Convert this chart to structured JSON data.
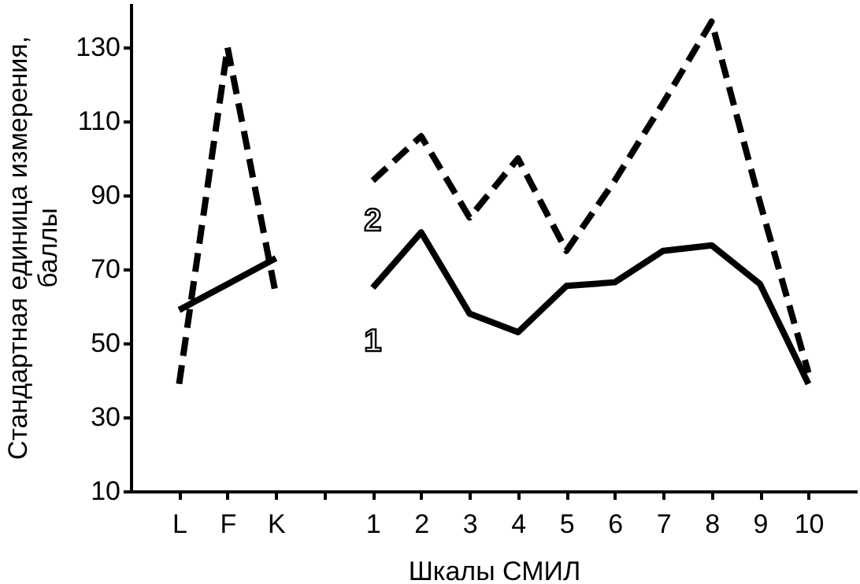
{
  "chart_data": {
    "type": "line",
    "xlabel": "Шкалы СМИЛ",
    "ylabel": "Стандартная единица измерения, баллы",
    "categories": [
      "L",
      "F",
      "K",
      null,
      "1",
      "2",
      "3",
      "4",
      "5",
      "6",
      "7",
      "8",
      "9",
      "10"
    ],
    "series": [
      {
        "name": "1",
        "color": "#000000",
        "line_style": "solid",
        "values": [
          59,
          66,
          73,
          null,
          65,
          80,
          58,
          53,
          65.5,
          66.5,
          75,
          76.5,
          66,
          39
        ]
      },
      {
        "name": "2",
        "color": "#000000",
        "line_style": "dashed",
        "values": [
          39,
          130,
          63,
          null,
          94,
          106,
          84,
          100,
          75,
          94,
          115,
          137,
          88,
          42
        ]
      }
    ],
    "ylim": [
      10,
      142
    ],
    "yticks": [
      10,
      30,
      50,
      70,
      90,
      110,
      130
    ],
    "grid": false,
    "marker": "none"
  }
}
